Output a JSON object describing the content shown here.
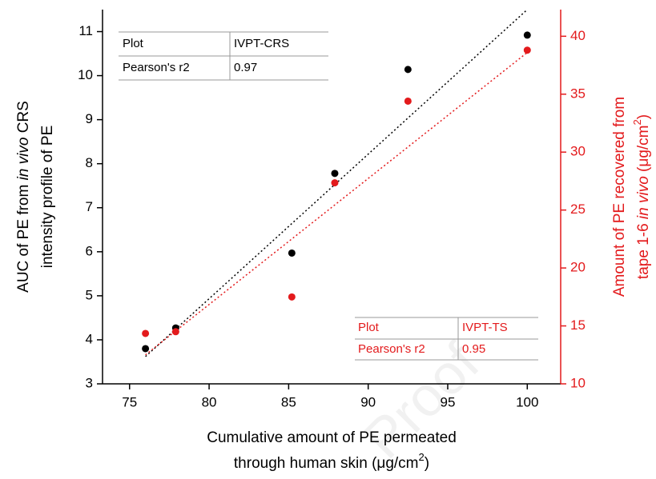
{
  "chart_data": {
    "type": "scatter",
    "xlabel": [
      "Cumulative amount of PE permeated",
      "through human skin (μg/cm",
      "2",
      ")"
    ],
    "ylabel": [
      "AUC of PE from ",
      "in vivo",
      " CRS",
      "intensity profile of PE"
    ],
    "y2label": [
      "Amount of PE recovered from",
      "tape 1-6 ",
      "in vivo",
      " (μg/cm",
      "2",
      ")"
    ],
    "xlim": [
      73.3,
      102.1
    ],
    "xticks": [
      75,
      80,
      85,
      90,
      95,
      100
    ],
    "ylim": [
      3,
      11.5
    ],
    "yticks": [
      3,
      4,
      5,
      6,
      7,
      8,
      9,
      10,
      11
    ],
    "y2lim": [
      10,
      42.3
    ],
    "y2ticks": [
      10,
      15,
      20,
      25,
      30,
      35,
      40
    ],
    "y2color": "#e31a1c",
    "series": [
      {
        "color": "#000000",
        "x": [
          76,
          77.9,
          85.2,
          87.9,
          92.5,
          100
        ],
        "values": [
          3.8,
          4.27,
          5.97,
          7.78,
          10.14,
          10.92
        ],
        "fit": {
          "x": [
            76,
            100
          ],
          "values": [
            3.62,
            11.5
          ]
        }
      },
      {
        "color": "#e31a1c",
        "axis": "y2",
        "x": [
          76,
          77.9,
          85.2,
          87.9,
          92.5,
          100
        ],
        "values": [
          14.35,
          14.5,
          17.5,
          27.35,
          34.4,
          38.8
        ],
        "fit": {
          "x": [
            76,
            100
          ],
          "values": [
            12.5,
            38.6
          ]
        }
      }
    ],
    "tables": [
      {
        "rows": [
          [
            "Plot",
            "IVPT-CRS"
          ],
          [
            "Pearson's r2",
            "0.97"
          ]
        ]
      },
      {
        "rows": [
          [
            "Plot",
            "IVPT-TS"
          ],
          [
            "Pearson's r2",
            "0.95"
          ]
        ]
      }
    ],
    "watermark": "Proof"
  }
}
